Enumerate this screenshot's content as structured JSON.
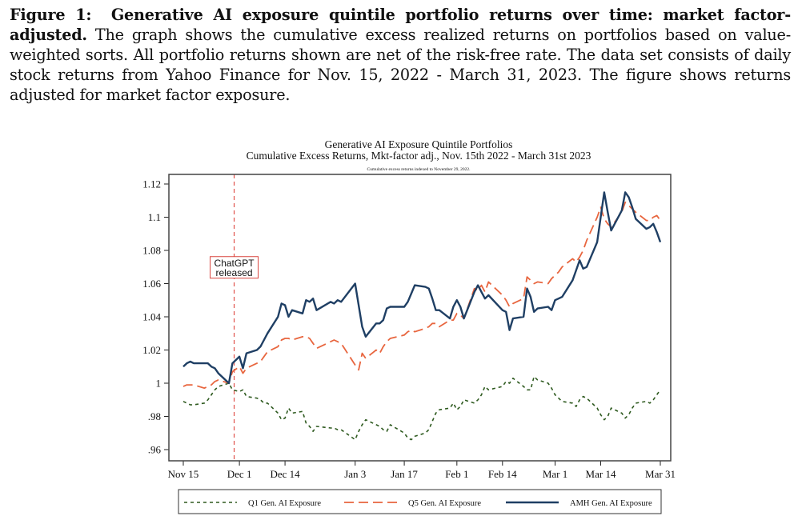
{
  "caption": {
    "label": "Figure 1:",
    "title": "Generative AI exposure quintile portfolio returns over time: market factor-adjusted.",
    "body": " The graph shows the cumulative excess realized returns on portfolios based on value-weighted sorts. All portfolio returns shown are net of the risk-free rate. The data set consists of daily stock returns from Yahoo Finance for Nov. 15, 2022 - March 31, 2023. The figure shows returns adjusted for market factor exposure."
  },
  "chart_data": {
    "type": "line",
    "title": "Generative AI Exposure Quintile Portfolios",
    "subtitle": "Cumulative Excess Returns, Mkt-factor adj., Nov. 15th 2022 - March 31st 2023",
    "note": "Cumulative excess returns indexed to November 29, 2022.",
    "xlabel": "",
    "ylabel": "",
    "x_unit": "days since Nov 15, 2022",
    "xlim": [
      -4,
      140
    ],
    "ylim": [
      0.955,
      1.125
    ],
    "x_ticks": [
      {
        "day": 0,
        "label": "Nov 15"
      },
      {
        "day": 16,
        "label": "Dec 1"
      },
      {
        "day": 29,
        "label": "Dec 14"
      },
      {
        "day": 49,
        "label": "Jan 3"
      },
      {
        "day": 63,
        "label": "Jan 17"
      },
      {
        "day": 78,
        "label": "Feb 1"
      },
      {
        "day": 91,
        "label": "Feb 14"
      },
      {
        "day": 106,
        "label": "Mar 1"
      },
      {
        "day": 119,
        "label": "Mar 14"
      },
      {
        "day": 136,
        "label": "Mar 31"
      }
    ],
    "y_ticks": [
      {
        "value": 0.96,
        "label": ".96"
      },
      {
        "value": 0.98,
        "label": ".98"
      },
      {
        "value": 1.0,
        "label": "1"
      },
      {
        "value": 1.02,
        "label": "1.02"
      },
      {
        "value": 1.04,
        "label": "1.04"
      },
      {
        "value": 1.06,
        "label": "1.06"
      },
      {
        "value": 1.08,
        "label": "1.08"
      },
      {
        "value": 1.1,
        "label": "1.1"
      },
      {
        "value": 1.12,
        "label": "1.12"
      }
    ],
    "grid": false,
    "annotation": {
      "day": 14.5,
      "text_lines": [
        "ChatGPT",
        "released"
      ],
      "value": 1.07
    },
    "legend": {
      "placement": "bottom"
    },
    "x": [
      0,
      1,
      2,
      3,
      6,
      7,
      8,
      9,
      10,
      13,
      14,
      16,
      17,
      18,
      21,
      22,
      23,
      24,
      27,
      28,
      29,
      30,
      31,
      34,
      35,
      36,
      37,
      38,
      42,
      43,
      44,
      45,
      49,
      50,
      51,
      52,
      55,
      56,
      57,
      58,
      59,
      63,
      64,
      65,
      66,
      69,
      70,
      71,
      72,
      73,
      76,
      77,
      78,
      79,
      80,
      83,
      84,
      85,
      86,
      87,
      91,
      92,
      93,
      94,
      97,
      98,
      99,
      100,
      101,
      104,
      105,
      106,
      107,
      108,
      111,
      112,
      113,
      114,
      115,
      118,
      119,
      120,
      121,
      122,
      125,
      126,
      127,
      128,
      129,
      132,
      133,
      134,
      135,
      136
    ],
    "series": [
      {
        "name": "Q1 Gen. AI Exposure",
        "color": "#2e5a1f",
        "style": "dotted",
        "values": [
          0.989,
          0.988,
          0.987,
          0.987,
          0.988,
          0.99,
          0.993,
          0.996,
          0.998,
          1.0,
          0.996,
          0.995,
          0.996,
          0.992,
          0.991,
          0.99,
          0.988,
          0.988,
          0.982,
          0.978,
          0.979,
          0.985,
          0.982,
          0.983,
          0.976,
          0.974,
          0.971,
          0.974,
          0.973,
          0.973,
          0.972,
          0.972,
          0.966,
          0.971,
          0.975,
          0.978,
          0.975,
          0.974,
          0.972,
          0.971,
          0.975,
          0.97,
          0.967,
          0.966,
          0.968,
          0.97,
          0.972,
          0.977,
          0.982,
          0.984,
          0.985,
          0.988,
          0.984,
          0.986,
          0.99,
          0.988,
          0.99,
          0.993,
          0.998,
          0.996,
          0.998,
          1.001,
          1.0,
          1.003,
          0.998,
          0.996,
          0.996,
          1.004,
          1.002,
          1.0,
          0.997,
          0.993,
          0.991,
          0.989,
          0.988,
          0.986,
          0.99,
          0.992,
          0.991,
          0.985,
          0.981,
          0.978,
          0.98,
          0.985,
          0.982,
          0.979,
          0.981,
          0.985,
          0.988,
          0.989,
          0.988,
          0.99,
          0.993,
          0.996
        ]
      },
      {
        "name": "Q5 Gen. AI Exposure",
        "color": "#e8663f",
        "style": "dashed",
        "values": [
          0.998,
          0.999,
          0.999,
          0.999,
          0.997,
          0.998,
          0.999,
          1.001,
          1.002,
          1.0,
          1.007,
          1.01,
          1.006,
          1.009,
          1.012,
          1.013,
          1.016,
          1.019,
          1.022,
          1.026,
          1.027,
          1.027,
          1.026,
          1.028,
          1.028,
          1.027,
          1.024,
          1.021,
          1.025,
          1.026,
          1.025,
          1.024,
          1.011,
          1.008,
          1.018,
          1.015,
          1.02,
          1.018,
          1.022,
          1.025,
          1.027,
          1.029,
          1.031,
          1.032,
          1.031,
          1.033,
          1.034,
          1.036,
          1.036,
          1.034,
          1.038,
          1.038,
          1.042,
          1.041,
          1.039,
          1.057,
          1.056,
          1.059,
          1.055,
          1.061,
          1.053,
          1.05,
          1.046,
          1.048,
          1.051,
          1.064,
          1.062,
          1.06,
          1.061,
          1.06,
          1.063,
          1.065,
          1.067,
          1.07,
          1.075,
          1.073,
          1.076,
          1.08,
          1.086,
          1.1,
          1.106,
          1.099,
          1.096,
          1.094,
          1.103,
          1.109,
          1.107,
          1.105,
          1.103,
          1.098,
          1.098,
          1.1,
          1.101,
          1.098
        ]
      },
      {
        "name": "AMH Gen. AI Exposure",
        "color": "#1f3f64",
        "style": "solid",
        "values": [
          1.01,
          1.012,
          1.013,
          1.012,
          1.012,
          1.012,
          1.01,
          1.009,
          1.006,
          1.0,
          1.012,
          1.016,
          1.009,
          1.018,
          1.02,
          1.022,
          1.026,
          1.03,
          1.04,
          1.048,
          1.047,
          1.04,
          1.044,
          1.042,
          1.05,
          1.049,
          1.051,
          1.044,
          1.049,
          1.048,
          1.05,
          1.049,
          1.06,
          1.047,
          1.034,
          1.028,
          1.036,
          1.036,
          1.038,
          1.045,
          1.046,
          1.046,
          1.049,
          1.054,
          1.059,
          1.058,
          1.057,
          1.051,
          1.044,
          1.044,
          1.039,
          1.046,
          1.05,
          1.046,
          1.039,
          1.055,
          1.059,
          1.055,
          1.051,
          1.053,
          1.044,
          1.043,
          1.032,
          1.039,
          1.04,
          1.057,
          1.052,
          1.043,
          1.045,
          1.046,
          1.044,
          1.05,
          1.051,
          1.052,
          1.062,
          1.068,
          1.074,
          1.069,
          1.07,
          1.085,
          1.1,
          1.115,
          1.103,
          1.092,
          1.104,
          1.115,
          1.112,
          1.106,
          1.099,
          1.093,
          1.094,
          1.096,
          1.091,
          1.085
        ]
      }
    ]
  }
}
